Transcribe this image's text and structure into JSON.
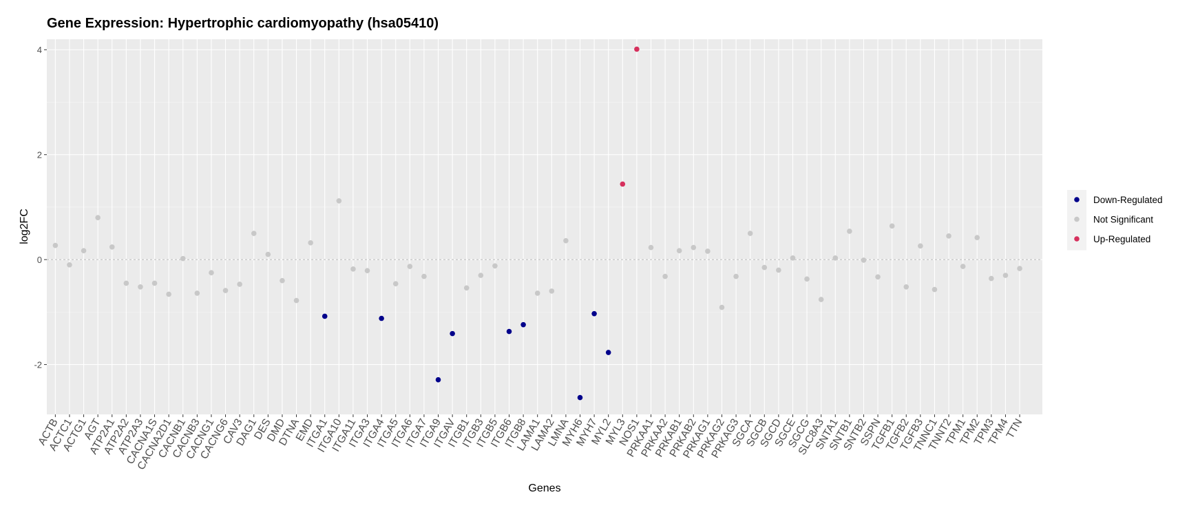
{
  "chart_data": {
    "type": "scatter",
    "title": "Gene Expression: Hypertrophic cardiomyopathy (hsa05410)",
    "xlabel": "Genes",
    "ylabel": "log2FC",
    "ylim": [
      -2.95,
      4.2
    ],
    "yticks": [
      4,
      2,
      0,
      -2
    ],
    "reference_line_y": 0,
    "grid": true,
    "legend_position": "right",
    "legend": [
      {
        "label": "Down-Regulated",
        "color": "#00008B"
      },
      {
        "label": "Not Significant",
        "color": "#C8C8C8"
      },
      {
        "label": "Up-Regulated",
        "color": "#D6305D"
      }
    ],
    "points": [
      {
        "gene": "ACTB",
        "y": 0.27,
        "status": "Not Significant"
      },
      {
        "gene": "ACTC1",
        "y": -0.1,
        "status": "Not Significant"
      },
      {
        "gene": "ACTG1",
        "y": 0.17,
        "status": "Not Significant"
      },
      {
        "gene": "AGT",
        "y": 0.8,
        "status": "Not Significant"
      },
      {
        "gene": "ATP2A1",
        "y": 0.24,
        "status": "Not Significant"
      },
      {
        "gene": "ATP2A2",
        "y": -0.45,
        "status": "Not Significant"
      },
      {
        "gene": "ATP2A3",
        "y": -0.52,
        "status": "Not Significant"
      },
      {
        "gene": "CACNA1S",
        "y": -0.45,
        "status": "Not Significant"
      },
      {
        "gene": "CACNA2D1",
        "y": -0.66,
        "status": "Not Significant"
      },
      {
        "gene": "CACNB1",
        "y": 0.02,
        "status": "Not Significant"
      },
      {
        "gene": "CACNB3",
        "y": -0.64,
        "status": "Not Significant"
      },
      {
        "gene": "CACNG1",
        "y": -0.25,
        "status": "Not Significant"
      },
      {
        "gene": "CACNG6",
        "y": -0.59,
        "status": "Not Significant"
      },
      {
        "gene": "CAV3",
        "y": -0.47,
        "status": "Not Significant"
      },
      {
        "gene": "DAG1",
        "y": 0.5,
        "status": "Not Significant"
      },
      {
        "gene": "DES",
        "y": 0.1,
        "status": "Not Significant"
      },
      {
        "gene": "DMD",
        "y": -0.4,
        "status": "Not Significant"
      },
      {
        "gene": "DTNA",
        "y": -0.78,
        "status": "Not Significant"
      },
      {
        "gene": "EMD",
        "y": 0.32,
        "status": "Not Significant"
      },
      {
        "gene": "ITGA1",
        "y": -1.08,
        "status": "Down-Regulated"
      },
      {
        "gene": "ITGA10",
        "y": 1.12,
        "status": "Not Significant"
      },
      {
        "gene": "ITGA11",
        "y": -0.18,
        "status": "Not Significant"
      },
      {
        "gene": "ITGA3",
        "y": -0.21,
        "status": "Not Significant"
      },
      {
        "gene": "ITGA4",
        "y": -1.12,
        "status": "Down-Regulated"
      },
      {
        "gene": "ITGA5",
        "y": -0.46,
        "status": "Not Significant"
      },
      {
        "gene": "ITGA6",
        "y": -0.13,
        "status": "Not Significant"
      },
      {
        "gene": "ITGA7",
        "y": -0.32,
        "status": "Not Significant"
      },
      {
        "gene": "ITGA9",
        "y": -2.29,
        "status": "Down-Regulated"
      },
      {
        "gene": "ITGAV",
        "y": -1.41,
        "status": "Down-Regulated"
      },
      {
        "gene": "ITGB1",
        "y": -0.54,
        "status": "Not Significant"
      },
      {
        "gene": "ITGB3",
        "y": -0.3,
        "status": "Not Significant"
      },
      {
        "gene": "ITGB5",
        "y": -0.12,
        "status": "Not Significant"
      },
      {
        "gene": "ITGB6",
        "y": -1.37,
        "status": "Down-Regulated"
      },
      {
        "gene": "ITGB8",
        "y": -1.24,
        "status": "Down-Regulated"
      },
      {
        "gene": "LAMA1",
        "y": -0.64,
        "status": "Not Significant"
      },
      {
        "gene": "LAMA2",
        "y": -0.6,
        "status": "Not Significant"
      },
      {
        "gene": "LMNA",
        "y": 0.36,
        "status": "Not Significant"
      },
      {
        "gene": "MYH6",
        "y": -2.63,
        "status": "Down-Regulated"
      },
      {
        "gene": "MYH7",
        "y": -1.03,
        "status": "Down-Regulated"
      },
      {
        "gene": "MYL2",
        "y": -1.77,
        "status": "Down-Regulated"
      },
      {
        "gene": "MYL3",
        "y": 1.44,
        "status": "Up-Regulated"
      },
      {
        "gene": "NOS1",
        "y": 4.01,
        "status": "Up-Regulated"
      },
      {
        "gene": "PRKAA1",
        "y": 0.23,
        "status": "Not Significant"
      },
      {
        "gene": "PRKAA2",
        "y": -0.32,
        "status": "Not Significant"
      },
      {
        "gene": "PRKAB1",
        "y": 0.17,
        "status": "Not Significant"
      },
      {
        "gene": "PRKAB2",
        "y": 0.23,
        "status": "Not Significant"
      },
      {
        "gene": "PRKAG1",
        "y": 0.16,
        "status": "Not Significant"
      },
      {
        "gene": "PRKAG2",
        "y": -0.91,
        "status": "Not Significant"
      },
      {
        "gene": "PRKAG3",
        "y": -0.32,
        "status": "Not Significant"
      },
      {
        "gene": "SGCA",
        "y": 0.5,
        "status": "Not Significant"
      },
      {
        "gene": "SGCB",
        "y": -0.15,
        "status": "Not Significant"
      },
      {
        "gene": "SGCD",
        "y": -0.2,
        "status": "Not Significant"
      },
      {
        "gene": "SGCE",
        "y": 0.03,
        "status": "Not Significant"
      },
      {
        "gene": "SGCG",
        "y": -0.37,
        "status": "Not Significant"
      },
      {
        "gene": "SLC8A3",
        "y": -0.76,
        "status": "Not Significant"
      },
      {
        "gene": "SNTA1",
        "y": 0.03,
        "status": "Not Significant"
      },
      {
        "gene": "SNTB1",
        "y": 0.54,
        "status": "Not Significant"
      },
      {
        "gene": "SNTB2",
        "y": -0.01,
        "status": "Not Significant"
      },
      {
        "gene": "SSPN",
        "y": -0.33,
        "status": "Not Significant"
      },
      {
        "gene": "TGFB1",
        "y": 0.64,
        "status": "Not Significant"
      },
      {
        "gene": "TGFB2",
        "y": -0.52,
        "status": "Not Significant"
      },
      {
        "gene": "TGFB3",
        "y": 0.26,
        "status": "Not Significant"
      },
      {
        "gene": "TNNC1",
        "y": -0.57,
        "status": "Not Significant"
      },
      {
        "gene": "TNNT2",
        "y": 0.45,
        "status": "Not Significant"
      },
      {
        "gene": "TPM1",
        "y": -0.13,
        "status": "Not Significant"
      },
      {
        "gene": "TPM2",
        "y": 0.42,
        "status": "Not Significant"
      },
      {
        "gene": "TPM3",
        "y": -0.36,
        "status": "Not Significant"
      },
      {
        "gene": "TPM4",
        "y": -0.3,
        "status": "Not Significant"
      },
      {
        "gene": "TTN",
        "y": -0.17,
        "status": "Not Significant"
      }
    ]
  }
}
